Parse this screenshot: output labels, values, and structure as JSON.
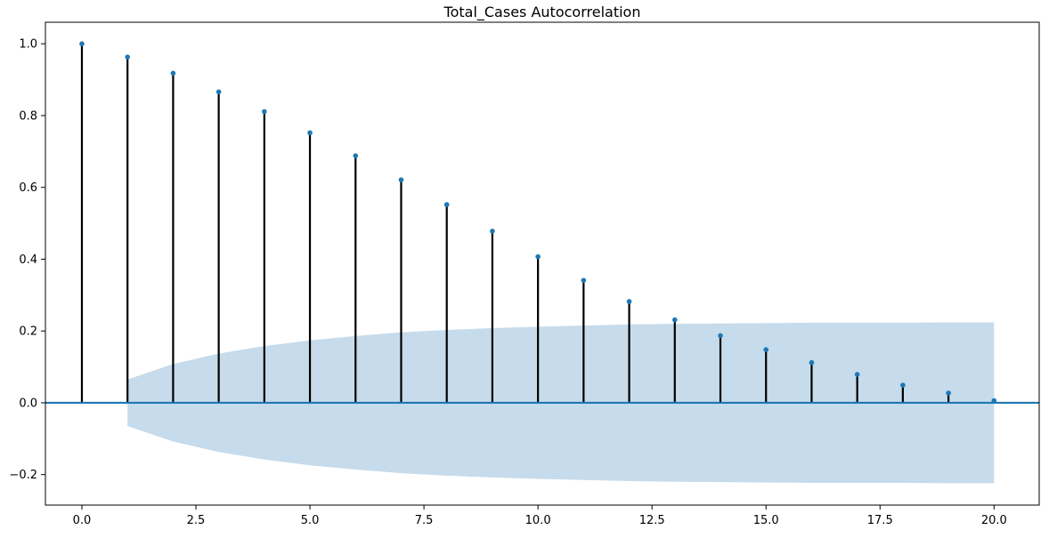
{
  "chart_data": {
    "type": "acf_stem",
    "title": "Total_Cases Autocorrelation",
    "xlabel": "",
    "ylabel": "",
    "xlim": [
      -0.8,
      20.99
    ],
    "ylim": [
      -0.285,
      1.06
    ],
    "x_ticks": [
      0.0,
      2.5,
      5.0,
      7.5,
      10.0,
      12.5,
      15.0,
      17.5,
      20.0
    ],
    "x_tick_labels": [
      "0.0",
      "2.5",
      "5.0",
      "7.5",
      "10.0",
      "12.5",
      "15.0",
      "17.5",
      "20.0"
    ],
    "y_ticks": [
      -0.2,
      0.0,
      0.2,
      0.4,
      0.6,
      0.8,
      1.0
    ],
    "y_tick_labels": [
      "−0.2",
      "0.0",
      "0.2",
      "0.4",
      "0.6",
      "0.8",
      "1.0"
    ],
    "lags": [
      0,
      1,
      2,
      3,
      4,
      5,
      6,
      7,
      8,
      9,
      10,
      11,
      12,
      13,
      14,
      15,
      16,
      17,
      18,
      19,
      20
    ],
    "values": [
      1.0,
      0.963,
      0.918,
      0.866,
      0.811,
      0.752,
      0.688,
      0.621,
      0.552,
      0.478,
      0.407,
      0.341,
      0.282,
      0.231,
      0.187,
      0.148,
      0.112,
      0.079,
      0.049,
      0.027,
      0.006
    ],
    "confidence_band": {
      "lags": [
        1,
        2,
        3,
        4,
        5,
        6,
        7,
        8,
        9,
        10,
        11,
        12,
        13,
        14,
        15,
        16,
        17,
        18,
        19,
        20
      ],
      "upper": [
        0.065,
        0.108,
        0.137,
        0.158,
        0.174,
        0.186,
        0.196,
        0.203,
        0.208,
        0.212,
        0.215,
        0.218,
        0.22,
        0.221,
        0.222,
        0.223,
        0.223,
        0.223,
        0.224,
        0.224
      ]
    },
    "colors": {
      "marker": "#1f77b4",
      "stem": "#000000",
      "baseline": "#1f77b4",
      "band": "#c6dbeb"
    },
    "grid": false,
    "legend": false
  }
}
